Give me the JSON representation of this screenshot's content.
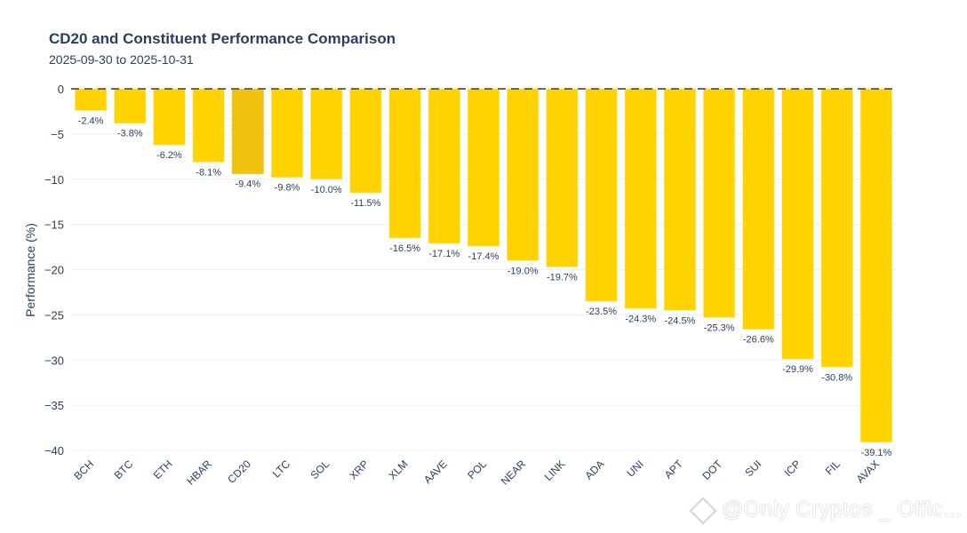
{
  "chart_data": {
    "type": "bar",
    "title": "CD20 and Constituent Performance Comparison",
    "subtitle": "2025-09-30 to 2025-10-31",
    "xlabel": "",
    "ylabel": "Performance (%)",
    "ylim": [
      -40.5,
      0
    ],
    "yticks": [
      0,
      -5,
      -10,
      -15,
      -20,
      -25,
      -30,
      -35,
      -40
    ],
    "ytick_labels": [
      "0",
      "−5",
      "−10",
      "−15",
      "−20",
      "−25",
      "−30",
      "−35",
      "−40"
    ],
    "grid": true,
    "zero_line": "dashed",
    "categories": [
      "BCH",
      "BTC",
      "ETH",
      "HBAR",
      "CD20",
      "LTC",
      "SOL",
      "XRP",
      "XLM",
      "AAVE",
      "POL",
      "NEAR",
      "LINK",
      "ADA",
      "UNI",
      "APT",
      "DOT",
      "SUI",
      "ICP",
      "FIL",
      "AVAX"
    ],
    "values": [
      -2.4,
      -3.8,
      -6.2,
      -8.1,
      -9.4,
      -9.8,
      -10.0,
      -11.5,
      -16.5,
      -17.1,
      -17.4,
      -19.0,
      -19.7,
      -23.5,
      -24.3,
      -24.5,
      -25.3,
      -26.6,
      -29.9,
      -30.8,
      -39.1
    ],
    "data_labels": [
      "-2.4%",
      "-3.8%",
      "-6.2%",
      "-8.1%",
      "-9.4%",
      "-9.8%",
      "-10.0%",
      "-11.5%",
      "-16.5%",
      "-17.1%",
      "-17.4%",
      "-19.0%",
      "-19.7%",
      "-23.5%",
      "-24.3%",
      "-24.5%",
      "-25.3%",
      "-26.6%",
      "-29.9%",
      "-30.8%",
      "-39.1%"
    ],
    "highlight_category": "CD20",
    "colors": {
      "bar": "#FFD200",
      "highlight_bar": "#F0C20F",
      "text": "#2a3f5f",
      "grid": "#ebf0f8",
      "zero_line": "#666666"
    }
  },
  "watermark": "@Only Cryptos _ Offic..."
}
